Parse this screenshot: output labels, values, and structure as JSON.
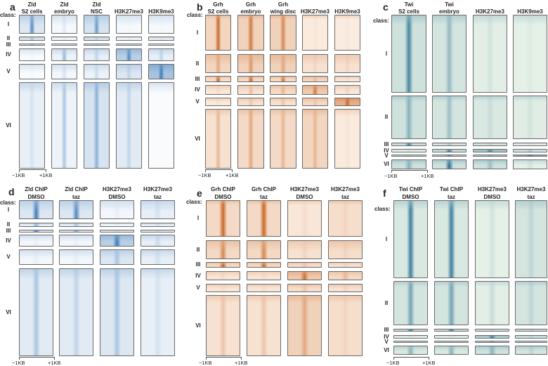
{
  "chart_data": {
    "type": "heatmap",
    "class_label": "class:",
    "row_classes": [
      "I",
      "II",
      "III",
      "IV",
      "V",
      "VI"
    ],
    "x_ticks": [
      "−1KB",
      "+1KB"
    ],
    "panels": [
      {
        "letter": "a",
        "color": "#2a6db2",
        "base": "#ffffff",
        "columns": [
          [
            "Zld",
            "S2 cells"
          ],
          [
            "Zld",
            "embryo"
          ],
          [
            "Zld",
            "NSC"
          ],
          [
            "",
            "H3K27me3"
          ],
          [
            "",
            "H3K9me3"
          ]
        ],
        "peak": [
          [
            0.8,
            0.15,
            0.7,
            0.05,
            0.05
          ],
          [
            0.4,
            0.1,
            0.3,
            0.1,
            0.15
          ],
          [
            0.5,
            0.1,
            0.3,
            0.1,
            0.1
          ],
          [
            0.05,
            0.5,
            0.3,
            0.8,
            0.3
          ],
          [
            0.05,
            0.2,
            0.25,
            0.3,
            0.9
          ],
          [
            0.2,
            0.4,
            0.55,
            0.3,
            0.02
          ]
        ],
        "bg": [
          [
            0.3,
            0.08,
            0.35,
            0.08,
            0.08
          ],
          [
            0.3,
            0.08,
            0.3,
            0.1,
            0.2
          ],
          [
            0.2,
            0.08,
            0.2,
            0.15,
            0.1
          ],
          [
            0.05,
            0.15,
            0.2,
            0.6,
            0.2
          ],
          [
            0.05,
            0.1,
            0.15,
            0.3,
            0.75
          ],
          [
            0.2,
            0.15,
            0.35,
            0.25,
            0.05
          ]
        ]
      },
      {
        "letter": "b",
        "color": "#c45a12",
        "base": "#fdf3ea",
        "columns": [
          [
            "Grh",
            "S2 cells"
          ],
          [
            "Grh",
            "embryo"
          ],
          [
            "Grh",
            "wing disc"
          ],
          [
            "",
            "H3K27me3"
          ],
          [
            "",
            "H3K9me3"
          ]
        ],
        "peak": [
          [
            0.9,
            0.8,
            0.7,
            0.1,
            0.08
          ],
          [
            0.5,
            0.6,
            0.5,
            0.2,
            0.2
          ],
          [
            0.95,
            0.9,
            0.8,
            0.35,
            0.15
          ],
          [
            0.15,
            0.35,
            0.4,
            0.8,
            0.2
          ],
          [
            0.1,
            0.3,
            0.3,
            0.3,
            0.9
          ],
          [
            0.4,
            0.5,
            0.4,
            0.4,
            0.1
          ]
        ],
        "bg": [
          [
            0.35,
            0.4,
            0.4,
            0.1,
            0.08
          ],
          [
            0.35,
            0.4,
            0.4,
            0.2,
            0.2
          ],
          [
            0.25,
            0.3,
            0.3,
            0.35,
            0.15
          ],
          [
            0.15,
            0.2,
            0.3,
            0.5,
            0.15
          ],
          [
            0.1,
            0.2,
            0.2,
            0.3,
            0.8
          ],
          [
            0.2,
            0.3,
            0.3,
            0.35,
            0.1
          ]
        ]
      },
      {
        "letter": "c",
        "color": "#1d6a8e",
        "base": "#f1f8ec",
        "columns": [
          [
            "Twi",
            "S2 cells"
          ],
          [
            "Twi",
            "embryo"
          ],
          [
            "",
            "H3K27me3"
          ],
          [
            "",
            "H3K9me3"
          ]
        ],
        "peak": [
          [
            0.8,
            0.45,
            0.15,
            0.1
          ],
          [
            0.5,
            0.4,
            0.2,
            0.15
          ],
          [
            0.9,
            0.3,
            0.2,
            0.1
          ],
          [
            0.1,
            0.9,
            0.8,
            0.3
          ],
          [
            0.3,
            0.9,
            0.5,
            0.95
          ],
          [
            0.5,
            0.95,
            0.4,
            0.15
          ]
        ],
        "bg": [
          [
            0.3,
            0.25,
            0.12,
            0.1
          ],
          [
            0.3,
            0.25,
            0.2,
            0.15
          ],
          [
            0.25,
            0.2,
            0.2,
            0.1
          ],
          [
            0.05,
            0.3,
            0.6,
            0.2
          ],
          [
            0.3,
            0.3,
            0.4,
            0.8
          ],
          [
            0.3,
            0.3,
            0.3,
            0.1
          ]
        ]
      },
      {
        "letter": "d",
        "color": "#2a6db2",
        "base": "#ffffff",
        "columns": [
          [
            "Zld ChIP",
            "DMSO"
          ],
          [
            "Zld ChIP",
            "taz"
          ],
          [
            "H3K27me3",
            "DMSO"
          ],
          [
            "H3K27me3",
            "taz"
          ]
        ],
        "peak": [
          [
            0.9,
            0.8,
            0.1,
            0.2
          ],
          [
            0.5,
            0.4,
            0.1,
            0.2
          ],
          [
            0.9,
            0.6,
            0.2,
            0.2
          ],
          [
            0.1,
            0.1,
            0.9,
            0.25
          ],
          [
            0.1,
            0.1,
            0.4,
            0.2
          ],
          [
            0.4,
            0.3,
            0.4,
            0.2
          ]
        ],
        "bg": [
          [
            0.3,
            0.3,
            0.1,
            0.2
          ],
          [
            0.2,
            0.2,
            0.1,
            0.2
          ],
          [
            0.2,
            0.2,
            0.2,
            0.2
          ],
          [
            0.1,
            0.1,
            0.6,
            0.2
          ],
          [
            0.1,
            0.1,
            0.3,
            0.2
          ],
          [
            0.25,
            0.25,
            0.3,
            0.2
          ]
        ]
      },
      {
        "letter": "e",
        "color": "#c45a12",
        "base": "#fdf3ea",
        "columns": [
          [
            "Grh ChIP",
            "DMSO"
          ],
          [
            "Grh ChIP",
            "taz"
          ],
          [
            "H3K27me3",
            "DMSO"
          ],
          [
            "H3K27me3",
            "taz"
          ]
        ],
        "peak": [
          [
            0.9,
            0.9,
            0.15,
            0.2
          ],
          [
            0.7,
            0.7,
            0.2,
            0.2
          ],
          [
            0.95,
            0.9,
            0.3,
            0.2
          ],
          [
            0.15,
            0.15,
            0.85,
            0.4
          ],
          [
            0.15,
            0.15,
            0.3,
            0.2
          ],
          [
            0.3,
            0.3,
            0.5,
            0.2
          ]
        ],
        "bg": [
          [
            0.3,
            0.3,
            0.15,
            0.25
          ],
          [
            0.3,
            0.3,
            0.2,
            0.25
          ],
          [
            0.3,
            0.3,
            0.25,
            0.2
          ],
          [
            0.15,
            0.15,
            0.5,
            0.3
          ],
          [
            0.15,
            0.15,
            0.25,
            0.2
          ],
          [
            0.2,
            0.2,
            0.4,
            0.25
          ]
        ]
      },
      {
        "letter": "f",
        "color": "#1d6a8e",
        "base": "#f1f8ec",
        "columns": [
          [
            "Twi ChIP",
            "DMSO"
          ],
          [
            "Twi ChIP",
            "taz"
          ],
          [
            "H3K27me3",
            "DMSO"
          ],
          [
            "H3K27me3",
            "taz"
          ]
        ],
        "peak": [
          [
            0.85,
            0.85,
            0.15,
            0.25
          ],
          [
            0.6,
            0.6,
            0.2,
            0.25
          ],
          [
            0.95,
            0.95,
            0.2,
            0.25
          ],
          [
            0.1,
            0.1,
            0.9,
            0.25
          ],
          [
            0.3,
            0.3,
            0.6,
            0.3
          ],
          [
            0.5,
            0.5,
            0.5,
            0.25
          ]
        ],
        "bg": [
          [
            0.2,
            0.2,
            0.1,
            0.25
          ],
          [
            0.25,
            0.25,
            0.12,
            0.25
          ],
          [
            0.25,
            0.25,
            0.2,
            0.25
          ],
          [
            0.1,
            0.1,
            0.5,
            0.25
          ],
          [
            0.3,
            0.3,
            0.4,
            0.3
          ],
          [
            0.2,
            0.2,
            0.3,
            0.25
          ]
        ]
      }
    ]
  }
}
